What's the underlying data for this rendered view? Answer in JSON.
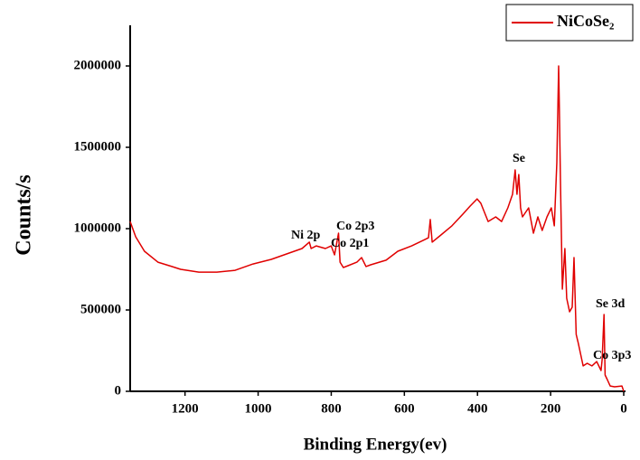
{
  "chart_data": {
    "type": "line",
    "x_label": "Binding Energy(ev)",
    "y_label": "Counts/s",
    "xlim": [
      1350,
      0
    ],
    "xticks": [
      1200,
      1000,
      800,
      600,
      400,
      200,
      0
    ],
    "ylim": [
      0,
      2250000
    ],
    "yticks": [
      0,
      500000,
      1000000,
      1500000,
      2000000
    ],
    "legend": "upper right",
    "annotations": [
      "Ni 2p",
      "Co 2p3",
      "Co 2p1",
      "Se",
      "Se 3d",
      "Co 3p3"
    ],
    "series": [
      {
        "name": "NiCoSe₂",
        "color": "#e00000",
        "x": [
          1350,
          1335,
          1311,
          1274,
          1236,
          1212,
          1162,
          1113,
          1063,
          1014,
          964,
          915,
          880,
          860,
          855,
          841,
          816,
          800,
          791,
          780,
          776,
          767,
          754,
          730,
          717,
          705,
          692,
          650,
          618,
          580,
          544,
          534,
          529,
          524,
          500,
          470,
          440,
          420,
          401,
          391,
          371,
          350,
          334,
          317,
          304,
          297,
          292,
          287,
          282,
          277,
          260,
          247,
          235,
          223,
          210,
          198,
          190,
          183,
          178,
          176,
          173,
          168,
          161,
          156,
          148,
          141,
          136,
          130,
          124,
          111,
          100,
          87,
          74,
          62,
          59,
          54,
          51,
          45,
          37,
          25,
          5,
          0
        ],
        "values": [
          1044000,
          950000,
          861000,
          794000,
          767000,
          750000,
          733000,
          733000,
          744000,
          783000,
          811000,
          850000,
          878000,
          917000,
          878000,
          894000,
          878000,
          894000,
          839000,
          972000,
          794000,
          761000,
          772000,
          794000,
          822000,
          767000,
          778000,
          806000,
          861000,
          894000,
          933000,
          944000,
          1056000,
          917000,
          961000,
          1017000,
          1089000,
          1139000,
          1183000,
          1156000,
          1044000,
          1072000,
          1044000,
          1128000,
          1211000,
          1361000,
          1211000,
          1333000,
          1128000,
          1072000,
          1128000,
          972000,
          1072000,
          989000,
          1072000,
          1128000,
          1017000,
          1406000,
          2000000,
          1739000,
          1294000,
          628000,
          878000,
          572000,
          489000,
          517000,
          822000,
          350000,
          294000,
          156000,
          172000,
          156000,
          183000,
          128000,
          194000,
          472000,
          100000,
          72000,
          33000,
          28000,
          33000,
          0
        ]
      }
    ]
  }
}
